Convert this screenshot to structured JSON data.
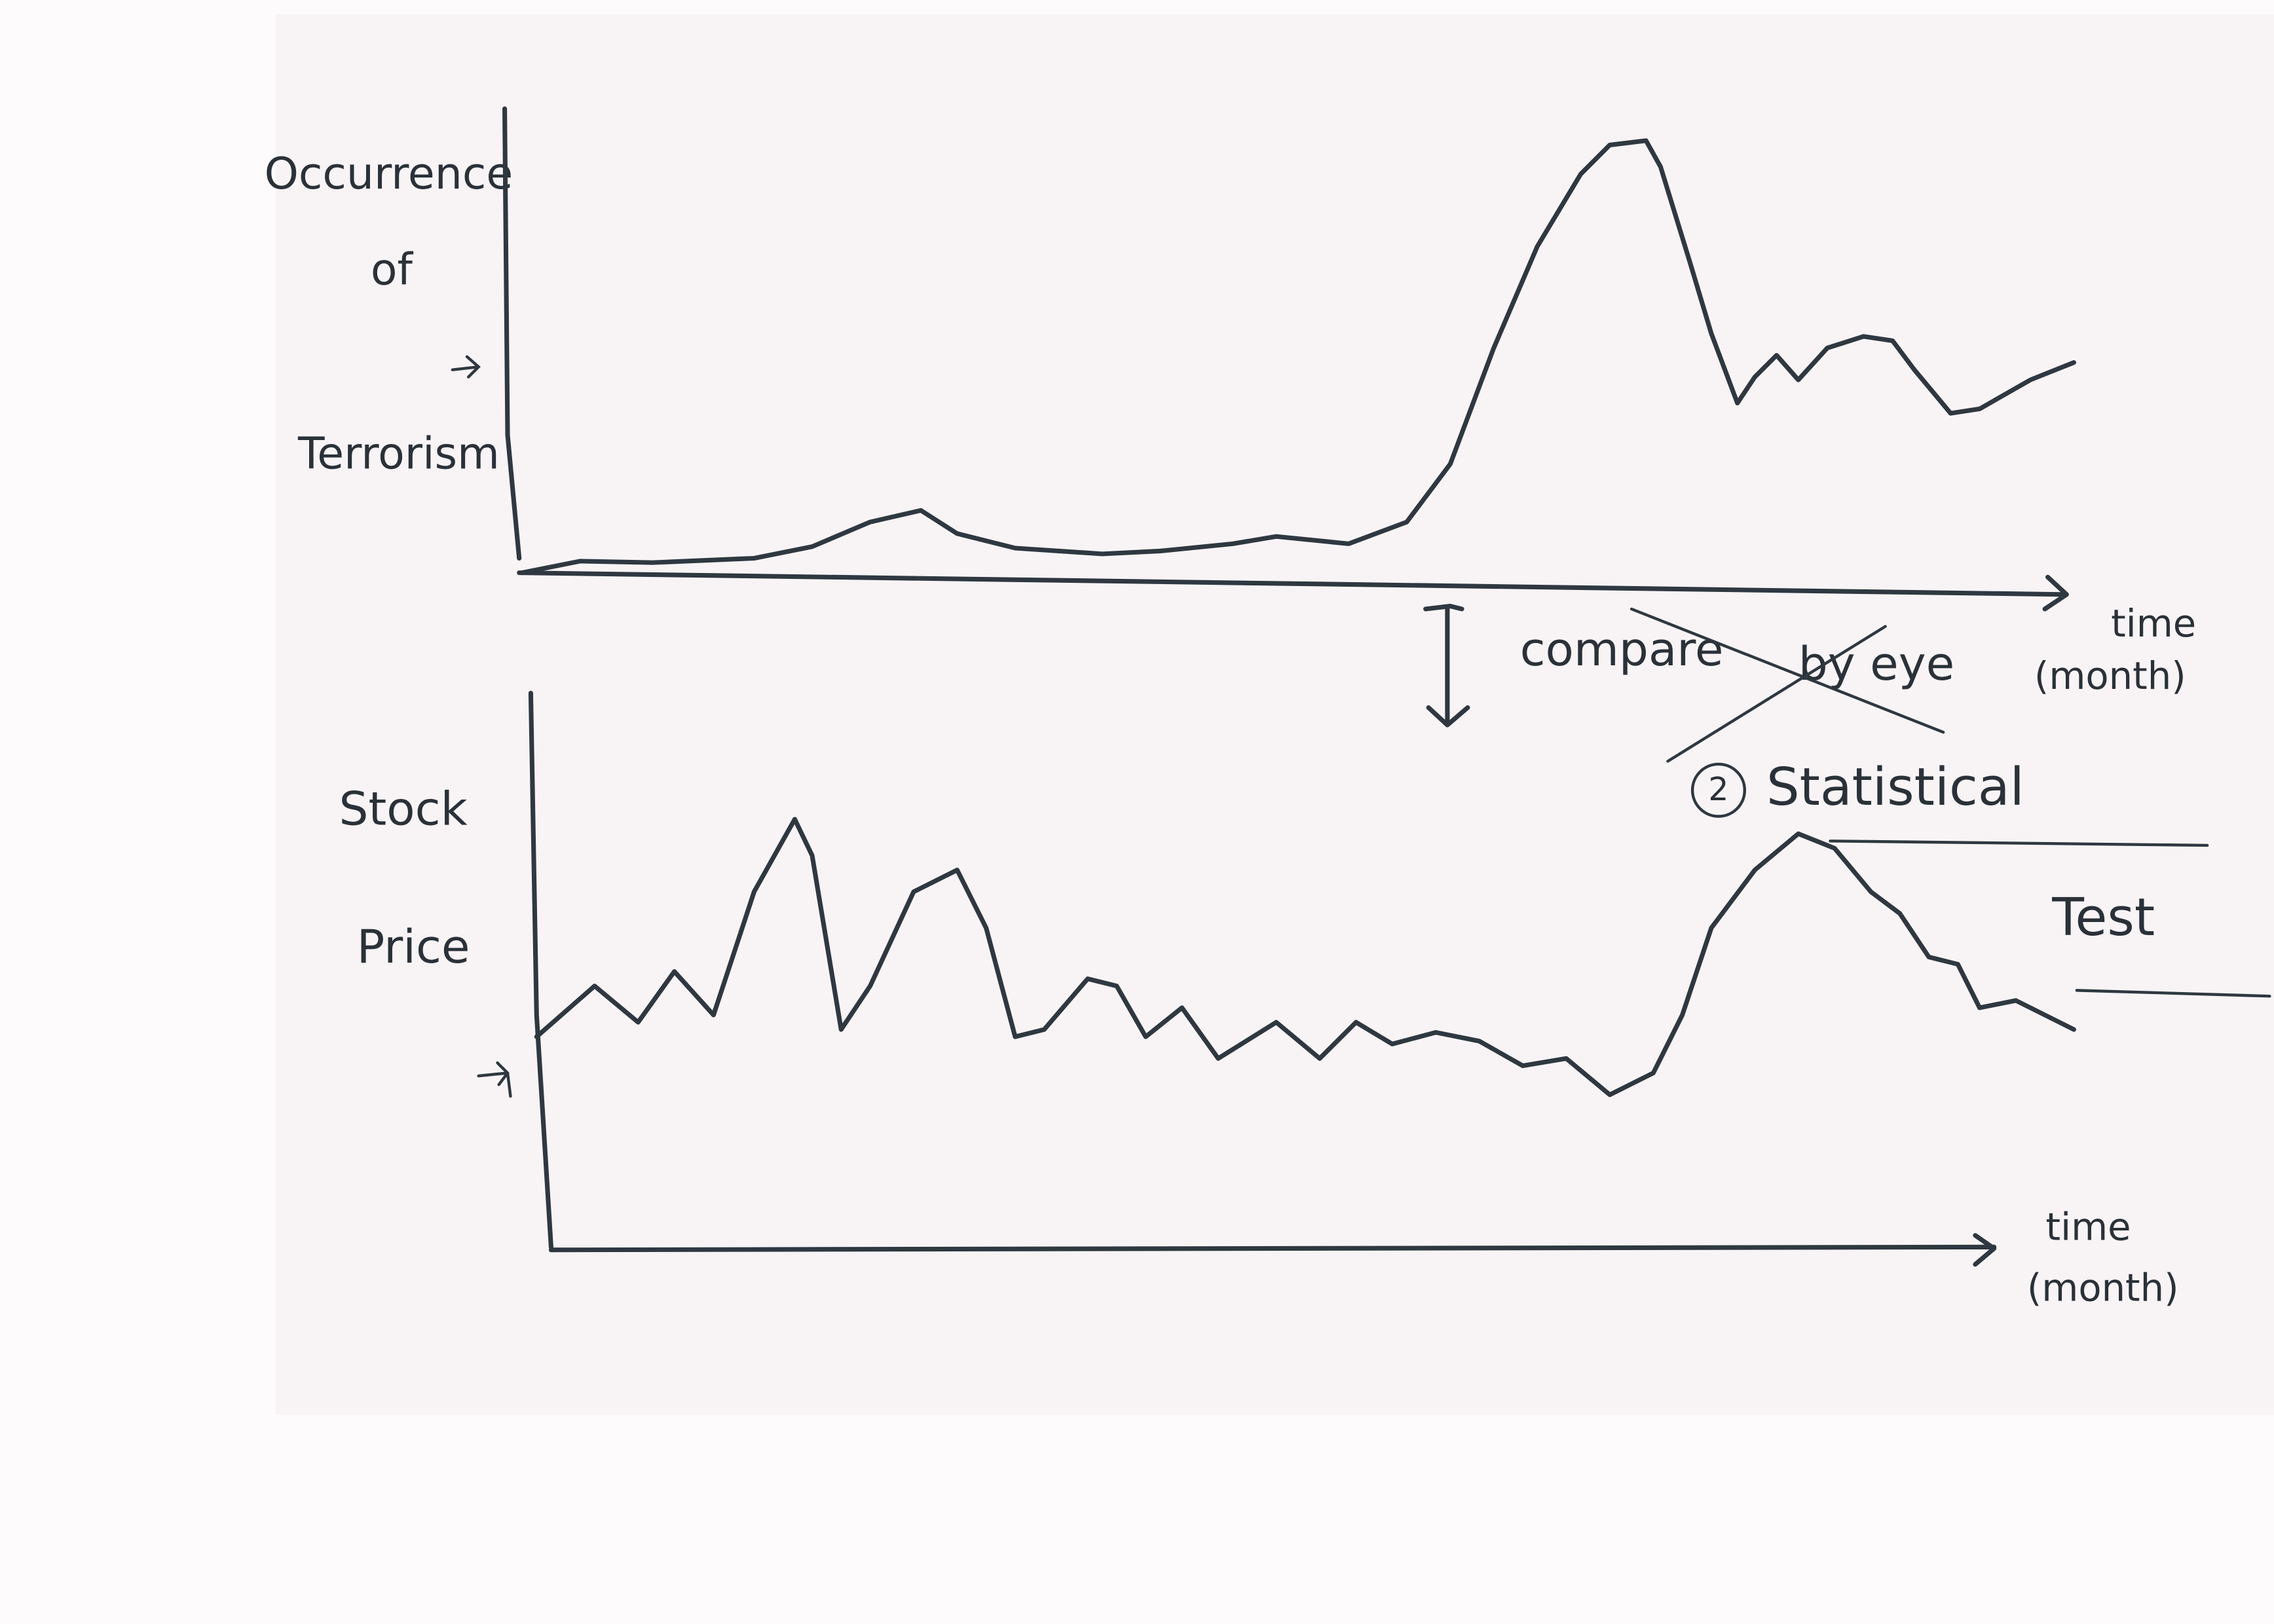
{
  "top_panel": {
    "y_label": [
      "Occurrence",
      "of",
      "Terrorism"
    ],
    "x_label": [
      "time",
      "(month)"
    ]
  },
  "comparison": {
    "text": "compare",
    "struck_text": "by eye",
    "method_number": "2",
    "method": [
      "Statistical",
      "Test"
    ]
  },
  "bottom_panel": {
    "y_label": [
      "Stock",
      "Price"
    ],
    "x_label": [
      "time",
      "(month)"
    ]
  }
}
